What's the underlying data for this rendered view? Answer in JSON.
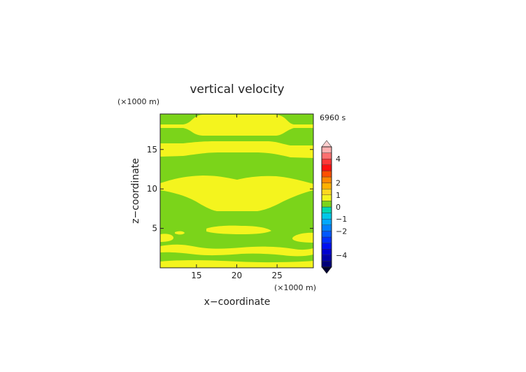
{
  "chart_data": {
    "type": "heatmap",
    "title": "vertical velocity",
    "xlabel": "x−coordinate",
    "ylabel": "z−coordinate",
    "x_unit": "(×1000 m)",
    "y_unit": "(×1000 m)",
    "time_label": "6960 s",
    "xlim": [
      10.5,
      29.5
    ],
    "ylim": [
      0,
      19.5
    ],
    "x_ticks": [
      15,
      20,
      25
    ],
    "y_ticks": [
      5,
      10,
      15
    ],
    "grid": false,
    "colorbar": {
      "levels": [
        -5,
        -4.5,
        -4,
        -3.5,
        -3,
        -2.5,
        -2,
        -1.5,
        -1,
        -0.5,
        0,
        0.5,
        1,
        1.5,
        2,
        2.5,
        3,
        3.5,
        4,
        4.5,
        5
      ],
      "tick_labels": [
        "4",
        "2",
        "1",
        "0",
        "−1",
        "−2",
        "−4"
      ],
      "tick_values": [
        4,
        2,
        1,
        0,
        -1,
        -2,
        -4
      ],
      "extend": "both",
      "colors": {
        "below_zero_band": "#7bd41a",
        "above_zero_band": "#f4f41e",
        "max_band": "#ffb0b0",
        "min_band": "#00007a"
      }
    },
    "field_description_bands": {
      "background_band": "0 to -0.5 (green)",
      "yellow_band": "0 to 0.5 (yellow)"
    }
  }
}
